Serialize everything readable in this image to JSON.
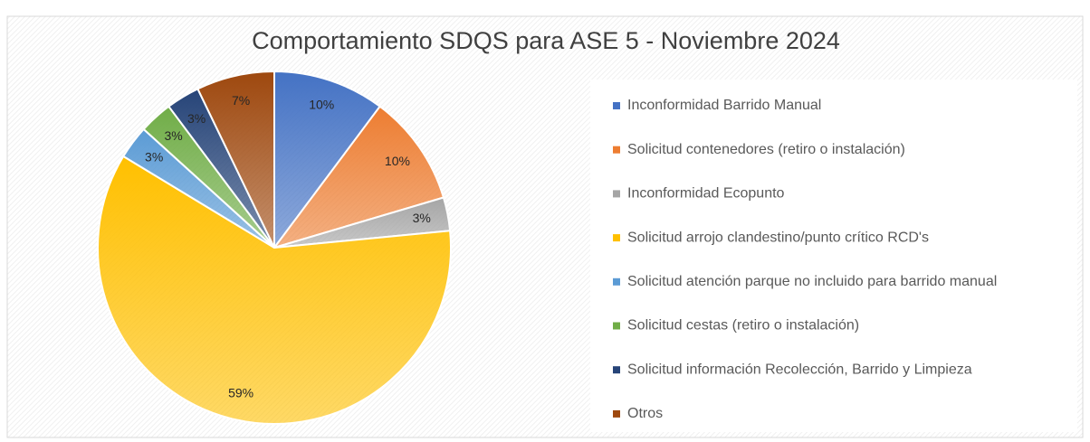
{
  "chart_data": {
    "type": "pie",
    "title": "Comportamiento SDQS para ASE 5 - Noviembre 2024",
    "categories": [
      "Inconformidad Barrido Manual",
      "Solicitud contenedores (retiro o instalación)",
      "Inconformidad Ecopunto",
      "Solicitud arrojo clandestino/punto crítico RCD's",
      "Solicitud atención parque no incluido para barrido manual",
      "Solicitud cestas (retiro o instalación)",
      "Solicitud información Recolección, Barrido y Limpieza",
      "Otros"
    ],
    "values": [
      10,
      10,
      3,
      59,
      3,
      3,
      3,
      7
    ],
    "value_labels": [
      "10%",
      "10%",
      "3%",
      "59%",
      "3%",
      "3%",
      "3%",
      "7%"
    ],
    "colors": [
      "#4472c4",
      "#ed7d31",
      "#a5a5a5",
      "#ffc000",
      "#5b9bd5",
      "#70ad47",
      "#264478",
      "#9e480e"
    ],
    "legend": "right"
  }
}
